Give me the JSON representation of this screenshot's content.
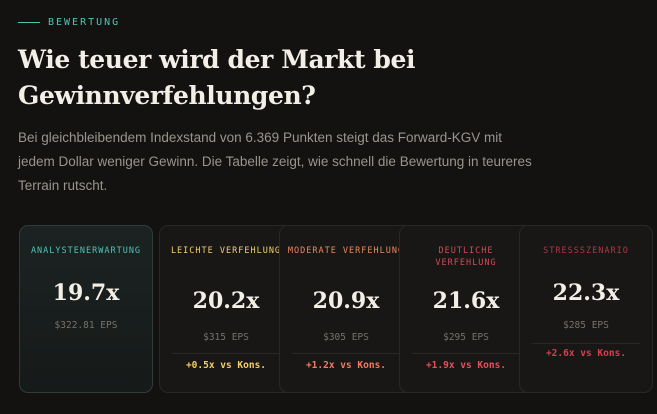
{
  "section": {
    "eyebrow": "BEWERTUNG",
    "title": "Wie teuer wird der Markt bei Gewinnverfehlungen?",
    "lead": "Bei gleichbleibendem Indexstand von 6.369 Punkten steigt das Forward-KGV mit jedem Dollar weniger Gewinn. Die Tabelle zeigt, wie schnell die Bewertung in teureres Terrain rutscht."
  },
  "colors": {
    "accent": "#4fc3b6",
    "label_light": "#f2cf6b",
    "label_moderate": "#e9875f",
    "label_significant": "#d24a55",
    "label_stress": "#b23545",
    "delta_light": "#f2cf6b",
    "delta_moderate": "#f07d62",
    "delta_significant": "#e4505c",
    "delta_stress": "#d2404e"
  },
  "cards": [
    {
      "label": "ANALYSTENERWARTUNG",
      "value": "19.7x",
      "eps": "$322.81 EPS",
      "delta": ""
    },
    {
      "label": "LEICHTE VERFEHLUNG",
      "value": "20.2x",
      "eps": "$315 EPS",
      "delta": "+0.5x vs Kons."
    },
    {
      "label": "MODERATE VERFEHLUNG",
      "value": "20.9x",
      "eps": "$305 EPS",
      "delta": "+1.2x vs Kons."
    },
    {
      "label": "DEUTLICHE VERFEHLUNG",
      "value": "21.6x",
      "eps": "$295 EPS",
      "delta": "+1.9x vs Kons."
    },
    {
      "label": "STRESSSZENARIO",
      "value": "22.3x",
      "eps": "$285 EPS",
      "delta": "+2.6x vs Kons."
    }
  ]
}
